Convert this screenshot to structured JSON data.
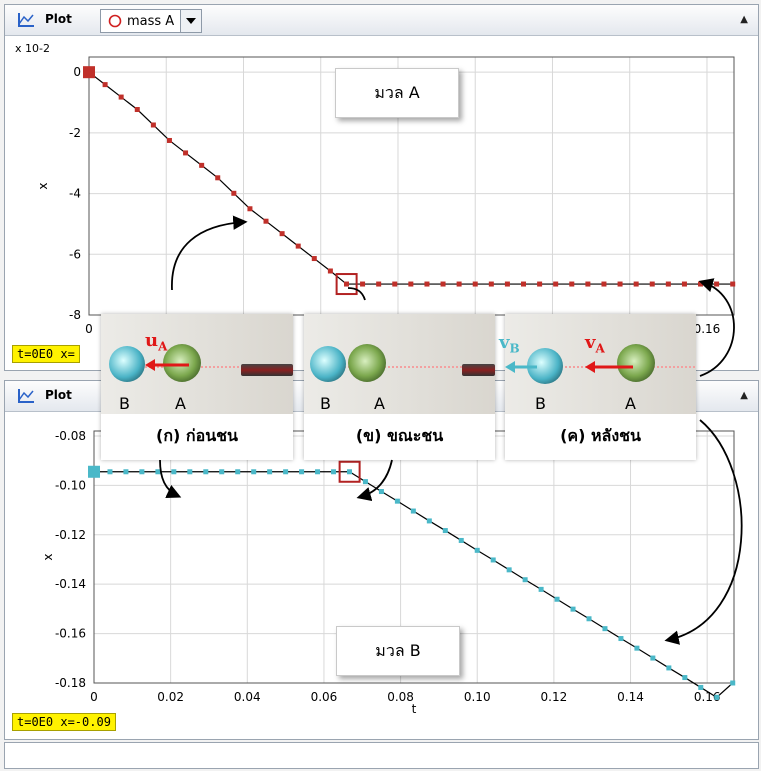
{
  "top_panel": {
    "toolbar": {
      "plot_label": "Plot",
      "selector_value": "mass A",
      "icon": "plot-axes-icon",
      "dropdown_icon": "chevron-down-icon",
      "collapse_icon": "triangle-up-icon"
    },
    "status": "t=0E0  x=",
    "callout": "มวล A"
  },
  "bottom_panel": {
    "toolbar": {
      "plot_label": "Plot",
      "icon": "plot-axes-icon",
      "collapse_icon": "triangle-up-icon"
    },
    "status": "t=0E0  x=-0.09",
    "callout": "มวล B"
  },
  "photos": [
    {
      "caption": "(ก) ก่อนชน",
      "ball_b": "B",
      "ball_a": "A",
      "velocity_label": "u",
      "velocity_sub": "A"
    },
    {
      "caption": "(ข) ขณะชน",
      "ball_b": "B",
      "ball_a": "A"
    },
    {
      "caption": "(ค) หลังชน",
      "ball_b": "B",
      "ball_a": "A",
      "vb_label": "v",
      "vb_sub": "B",
      "va_label": "v",
      "va_sub": "A"
    }
  ],
  "colors": {
    "mass_a": "#c0302a",
    "mass_b": "#4ab8c8",
    "highlight_box": "#b22222",
    "status_bg": "#fff200"
  },
  "chart_data": [
    {
      "type": "line",
      "series": [
        {
          "name": "mass A",
          "t": [
            0,
            0.00417,
            0.00833,
            0.0125,
            0.01667,
            0.02083,
            0.025,
            0.02917,
            0.03333,
            0.0375,
            0.04167,
            0.04583,
            0.05,
            0.05417,
            0.05833,
            0.0625,
            0.06667,
            0.07083,
            0.075,
            0.07917,
            0.08333,
            0.0875,
            0.09167,
            0.09583,
            0.1,
            0.10417,
            0.10833,
            0.1125,
            0.11667,
            0.12083,
            0.125,
            0.12917,
            0.13333,
            0.1375,
            0.14167,
            0.14583,
            0.15,
            0.15417,
            0.15833,
            0.1625,
            0.16667
          ],
          "x": [
            0,
            -0.41,
            -0.82,
            -1.23,
            -1.74,
            -2.25,
            -2.66,
            -3.07,
            -3.48,
            -3.99,
            -4.5,
            -4.91,
            -5.32,
            -5.73,
            -6.14,
            -6.55,
            -6.98,
            -6.98,
            -6.98,
            -6.98,
            -6.98,
            -6.98,
            -6.98,
            -6.98,
            -6.98,
            -6.98,
            -6.98,
            -6.98,
            -6.98,
            -6.98,
            -6.98,
            -6.98,
            -6.98,
            -6.98,
            -6.98,
            -6.98,
            -6.98,
            -6.98,
            -6.98,
            -6.98,
            -6.98
          ]
        }
      ],
      "y_multiplier": "x 10-2",
      "ylabel": "x",
      "ylim": [
        -8,
        0.5
      ],
      "yticks": [
        "0",
        "-2",
        "-4",
        "-6",
        "-8"
      ],
      "xticks": [
        "0",
        "0.16"
      ],
      "grid": true
    },
    {
      "type": "line",
      "series": [
        {
          "name": "mass B",
          "t": [
            0,
            0.00417,
            0.00833,
            0.0125,
            0.01667,
            0.02083,
            0.025,
            0.02917,
            0.03333,
            0.0375,
            0.04167,
            0.04583,
            0.05,
            0.05417,
            0.05833,
            0.0625,
            0.06667,
            0.07083,
            0.075,
            0.07917,
            0.08333,
            0.0875,
            0.09167,
            0.09583,
            0.1,
            0.10417,
            0.10833,
            0.1125,
            0.11667,
            0.12083,
            0.125,
            0.12917,
            0.13333,
            0.1375,
            0.14167,
            0.14583,
            0.15,
            0.15417,
            0.15833,
            0.1625,
            0.16667
          ],
          "x": [
            -0.0945,
            -0.0945,
            -0.0945,
            -0.0945,
            -0.0945,
            -0.0945,
            -0.0945,
            -0.0945,
            -0.0945,
            -0.0945,
            -0.0945,
            -0.0945,
            -0.0945,
            -0.0945,
            -0.0945,
            -0.0945,
            -0.0945,
            -0.0985,
            -0.1025,
            -0.1064,
            -0.1104,
            -0.1144,
            -0.1183,
            -0.1223,
            -0.1263,
            -0.1302,
            -0.1342,
            -0.1382,
            -0.1421,
            -0.1461,
            -0.1501,
            -0.154,
            -0.158,
            -0.162,
            -0.1659,
            -0.1699,
            -0.1739,
            -0.1778,
            -0.1818,
            -0.1858,
            -0.18
          ]
        }
      ],
      "xlabel": "t",
      "ylabel": "x",
      "xlim": [
        0,
        0.167
      ],
      "ylim": [
        -0.18,
        -0.08
      ],
      "xticks": [
        "0",
        "0.02",
        "0.04",
        "0.06",
        "0.08",
        "0.10",
        "0.12",
        "0.14",
        "0.16"
      ],
      "yticks": [
        "-0.08",
        "-0.10",
        "-0.12",
        "-0.14",
        "-0.16",
        "-0.18"
      ],
      "grid": true
    }
  ]
}
